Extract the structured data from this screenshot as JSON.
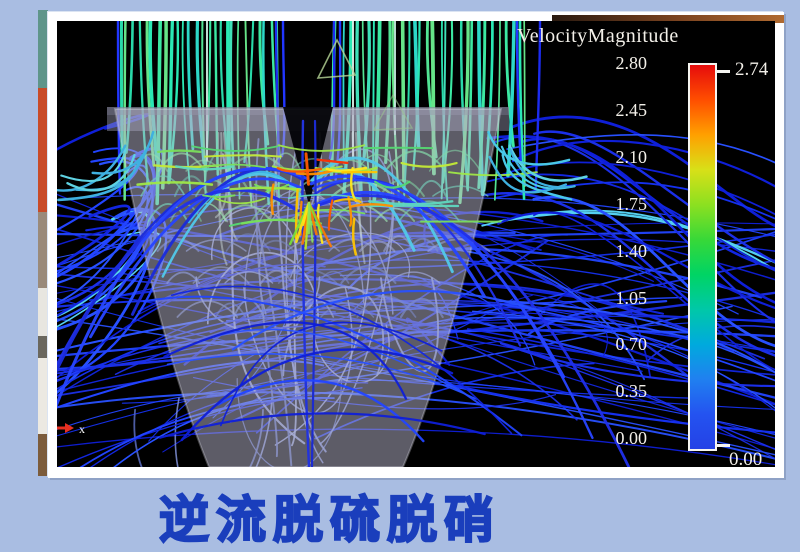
{
  "page": {
    "background_color": "#a9bde2",
    "caption": "逆流脱硫脱硝",
    "caption_color": "#1a3ebc"
  },
  "chart_data": {
    "type": "streamline-flow",
    "title": "VelocityMagnitude",
    "legend_position": "right",
    "background": "#000000",
    "colorbar": {
      "tick_labels": [
        "2.80",
        "2.45",
        "2.10",
        "1.75",
        "1.40",
        "1.05",
        "0.70",
        "0.35",
        "0.00"
      ],
      "range": [
        0.0,
        2.8
      ],
      "max_marker": "2.74",
      "min_marker": "0.00",
      "gradient_top_to_bottom": [
        "#e60c0c",
        "#ff4e00",
        "#ffa000",
        "#d8e018",
        "#8ce020",
        "#38d838",
        "#00d464",
        "#00c8a8",
        "#00aadd",
        "#2080f0",
        "#2453f0",
        "#2442e6"
      ]
    },
    "axis_marker_label": "x",
    "axis_marker_color": "#e83020"
  }
}
